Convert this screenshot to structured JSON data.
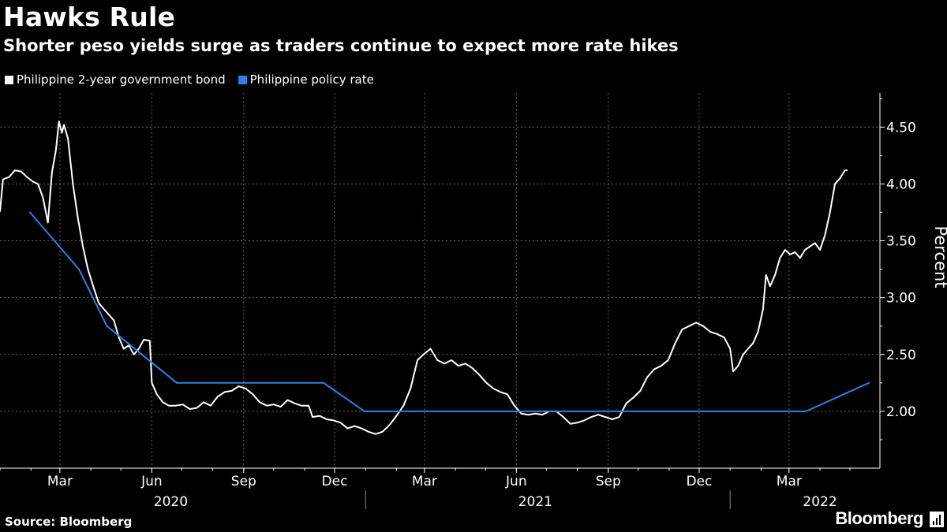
{
  "title": "Hawks Rule",
  "subtitle": "Shorter peso yields surge as traders continue to expect more rate hikes",
  "source": "Source: Bloomberg",
  "brand": "Bloomberg",
  "chart_data": {
    "type": "line",
    "ylabel": "Percent",
    "ylim": [
      1.5,
      4.8
    ],
    "yticks": [
      2.0,
      2.5,
      3.0,
      3.5,
      4.0,
      4.5
    ],
    "ytick_labels": [
      "2.00",
      "2.50",
      "3.00",
      "3.50",
      "4.00",
      "4.50"
    ],
    "x_range": [
      "2020-01-01",
      "2022-05-31"
    ],
    "month_ticks": [
      {
        "date": "2020-03-01",
        "label": "Mar"
      },
      {
        "date": "2020-06-01",
        "label": "Jun"
      },
      {
        "date": "2020-09-01",
        "label": "Sep"
      },
      {
        "date": "2020-12-01",
        "label": "Dec"
      },
      {
        "date": "2021-03-01",
        "label": "Mar"
      },
      {
        "date": "2021-06-01",
        "label": "Jun"
      },
      {
        "date": "2021-09-01",
        "label": "Sep"
      },
      {
        "date": "2021-12-01",
        "label": "Dec"
      },
      {
        "date": "2022-03-01",
        "label": "Mar"
      }
    ],
    "year_labels": [
      {
        "date": "2020-06-20",
        "label": "2020"
      },
      {
        "date": "2021-06-20",
        "label": "2021"
      },
      {
        "date": "2022-04-01",
        "label": "2022"
      }
    ],
    "year_dividers": [
      "2021-01-01",
      "2022-01-01"
    ],
    "series": [
      {
        "name": "Philippine 2-year government bond",
        "color": "#ffffff",
        "points": [
          [
            "2020-01-01",
            3.76
          ],
          [
            "2020-01-04",
            4.04
          ],
          [
            "2020-01-10",
            4.06
          ],
          [
            "2020-01-16",
            4.12
          ],
          [
            "2020-01-22",
            4.11
          ],
          [
            "2020-01-28",
            4.06
          ],
          [
            "2020-02-03",
            4.02
          ],
          [
            "2020-02-08",
            4.0
          ],
          [
            "2020-02-13",
            3.88
          ],
          [
            "2020-02-18",
            3.66
          ],
          [
            "2020-02-22",
            4.1
          ],
          [
            "2020-02-26",
            4.3
          ],
          [
            "2020-02-29",
            4.55
          ],
          [
            "2020-03-03",
            4.45
          ],
          [
            "2020-03-05",
            4.52
          ],
          [
            "2020-03-09",
            4.4
          ],
          [
            "2020-03-14",
            4.0
          ],
          [
            "2020-03-19",
            3.7
          ],
          [
            "2020-03-24",
            3.45
          ],
          [
            "2020-03-29",
            3.25
          ],
          [
            "2020-04-04",
            3.08
          ],
          [
            "2020-04-09",
            2.95
          ],
          [
            "2020-04-14",
            2.9
          ],
          [
            "2020-04-19",
            2.85
          ],
          [
            "2020-04-24",
            2.8
          ],
          [
            "2020-04-29",
            2.65
          ],
          [
            "2020-05-04",
            2.55
          ],
          [
            "2020-05-09",
            2.58
          ],
          [
            "2020-05-14",
            2.5
          ],
          [
            "2020-05-19",
            2.55
          ],
          [
            "2020-05-24",
            2.63
          ],
          [
            "2020-05-30",
            2.62
          ],
          [
            "2020-06-01",
            2.25
          ],
          [
            "2020-06-06",
            2.15
          ],
          [
            "2020-06-12",
            2.08
          ],
          [
            "2020-06-18",
            2.05
          ],
          [
            "2020-06-25",
            2.05
          ],
          [
            "2020-07-02",
            2.06
          ],
          [
            "2020-07-09",
            2.02
          ],
          [
            "2020-07-16",
            2.03
          ],
          [
            "2020-07-23",
            2.08
          ],
          [
            "2020-07-30",
            2.05
          ],
          [
            "2020-08-06",
            2.13
          ],
          [
            "2020-08-13",
            2.17
          ],
          [
            "2020-08-20",
            2.18
          ],
          [
            "2020-08-27",
            2.22
          ],
          [
            "2020-09-03",
            2.2
          ],
          [
            "2020-09-10",
            2.15
          ],
          [
            "2020-09-17",
            2.08
          ],
          [
            "2020-09-24",
            2.05
          ],
          [
            "2020-10-01",
            2.06
          ],
          [
            "2020-10-08",
            2.04
          ],
          [
            "2020-10-15",
            2.1
          ],
          [
            "2020-10-22",
            2.07
          ],
          [
            "2020-10-29",
            2.05
          ],
          [
            "2020-11-05",
            2.05
          ],
          [
            "2020-11-09",
            1.95
          ],
          [
            "2020-11-16",
            1.96
          ],
          [
            "2020-11-23",
            1.93
          ],
          [
            "2020-11-30",
            1.92
          ],
          [
            "2020-12-07",
            1.9
          ],
          [
            "2020-12-14",
            1.85
          ],
          [
            "2020-12-21",
            1.87
          ],
          [
            "2020-12-28",
            1.85
          ],
          [
            "2021-01-04",
            1.82
          ],
          [
            "2021-01-11",
            1.8
          ],
          [
            "2021-01-18",
            1.82
          ],
          [
            "2021-01-25",
            1.88
          ],
          [
            "2021-02-01",
            1.96
          ],
          [
            "2021-02-08",
            2.05
          ],
          [
            "2021-02-15",
            2.2
          ],
          [
            "2021-02-22",
            2.45
          ],
          [
            "2021-02-28",
            2.5
          ],
          [
            "2021-03-07",
            2.55
          ],
          [
            "2021-03-14",
            2.45
          ],
          [
            "2021-03-21",
            2.42
          ],
          [
            "2021-03-28",
            2.45
          ],
          [
            "2021-04-04",
            2.4
          ],
          [
            "2021-04-11",
            2.42
          ],
          [
            "2021-04-18",
            2.38
          ],
          [
            "2021-04-25",
            2.32
          ],
          [
            "2021-05-02",
            2.25
          ],
          [
            "2021-05-09",
            2.2
          ],
          [
            "2021-05-16",
            2.17
          ],
          [
            "2021-05-23",
            2.15
          ],
          [
            "2021-05-30",
            2.05
          ],
          [
            "2021-06-06",
            1.98
          ],
          [
            "2021-06-13",
            1.97
          ],
          [
            "2021-06-20",
            1.98
          ],
          [
            "2021-06-27",
            1.97
          ],
          [
            "2021-07-04",
            2.0
          ],
          [
            "2021-07-11",
            2.0
          ],
          [
            "2021-07-18",
            1.95
          ],
          [
            "2021-07-25",
            1.89
          ],
          [
            "2021-08-01",
            1.9
          ],
          [
            "2021-08-08",
            1.92
          ],
          [
            "2021-08-15",
            1.95
          ],
          [
            "2021-08-22",
            1.97
          ],
          [
            "2021-08-29",
            1.95
          ],
          [
            "2021-09-05",
            1.93
          ],
          [
            "2021-09-12",
            1.95
          ],
          [
            "2021-09-19",
            2.07
          ],
          [
            "2021-09-26",
            2.12
          ],
          [
            "2021-10-03",
            2.18
          ],
          [
            "2021-10-10",
            2.3
          ],
          [
            "2021-10-17",
            2.37
          ],
          [
            "2021-10-24",
            2.4
          ],
          [
            "2021-10-31",
            2.45
          ],
          [
            "2021-11-07",
            2.6
          ],
          [
            "2021-11-14",
            2.72
          ],
          [
            "2021-11-21",
            2.75
          ],
          [
            "2021-11-28",
            2.78
          ],
          [
            "2021-12-05",
            2.75
          ],
          [
            "2021-12-12",
            2.7
          ],
          [
            "2021-12-19",
            2.68
          ],
          [
            "2021-12-26",
            2.65
          ],
          [
            "2022-01-01",
            2.55
          ],
          [
            "2022-01-04",
            2.35
          ],
          [
            "2022-01-09",
            2.4
          ],
          [
            "2022-01-14",
            2.5
          ],
          [
            "2022-01-19",
            2.55
          ],
          [
            "2022-01-24",
            2.6
          ],
          [
            "2022-01-29",
            2.7
          ],
          [
            "2022-02-03",
            2.9
          ],
          [
            "2022-02-06",
            3.2
          ],
          [
            "2022-02-10",
            3.1
          ],
          [
            "2022-02-15",
            3.2
          ],
          [
            "2022-02-20",
            3.35
          ],
          [
            "2022-02-25",
            3.42
          ],
          [
            "2022-03-02",
            3.38
          ],
          [
            "2022-03-07",
            3.4
          ],
          [
            "2022-03-12",
            3.35
          ],
          [
            "2022-03-17",
            3.42
          ],
          [
            "2022-03-22",
            3.45
          ],
          [
            "2022-03-27",
            3.48
          ],
          [
            "2022-04-01",
            3.42
          ],
          [
            "2022-04-06",
            3.55
          ],
          [
            "2022-04-11",
            3.75
          ],
          [
            "2022-04-16",
            4.0
          ],
          [
            "2022-04-21",
            4.05
          ],
          [
            "2022-04-26",
            4.12
          ],
          [
            "2022-04-28",
            4.12
          ]
        ]
      },
      {
        "name": "Philippine policy rate",
        "color": "#2f7fe8",
        "points": [
          [
            "2020-01-31",
            3.75
          ],
          [
            "2020-03-20",
            3.25
          ],
          [
            "2020-04-17",
            2.75
          ],
          [
            "2020-06-26",
            2.25
          ],
          [
            "2020-11-20",
            2.25
          ],
          [
            "2020-12-31",
            2.0
          ],
          [
            "2022-03-18",
            2.0
          ],
          [
            "2022-05-20",
            2.25
          ]
        ]
      }
    ]
  }
}
